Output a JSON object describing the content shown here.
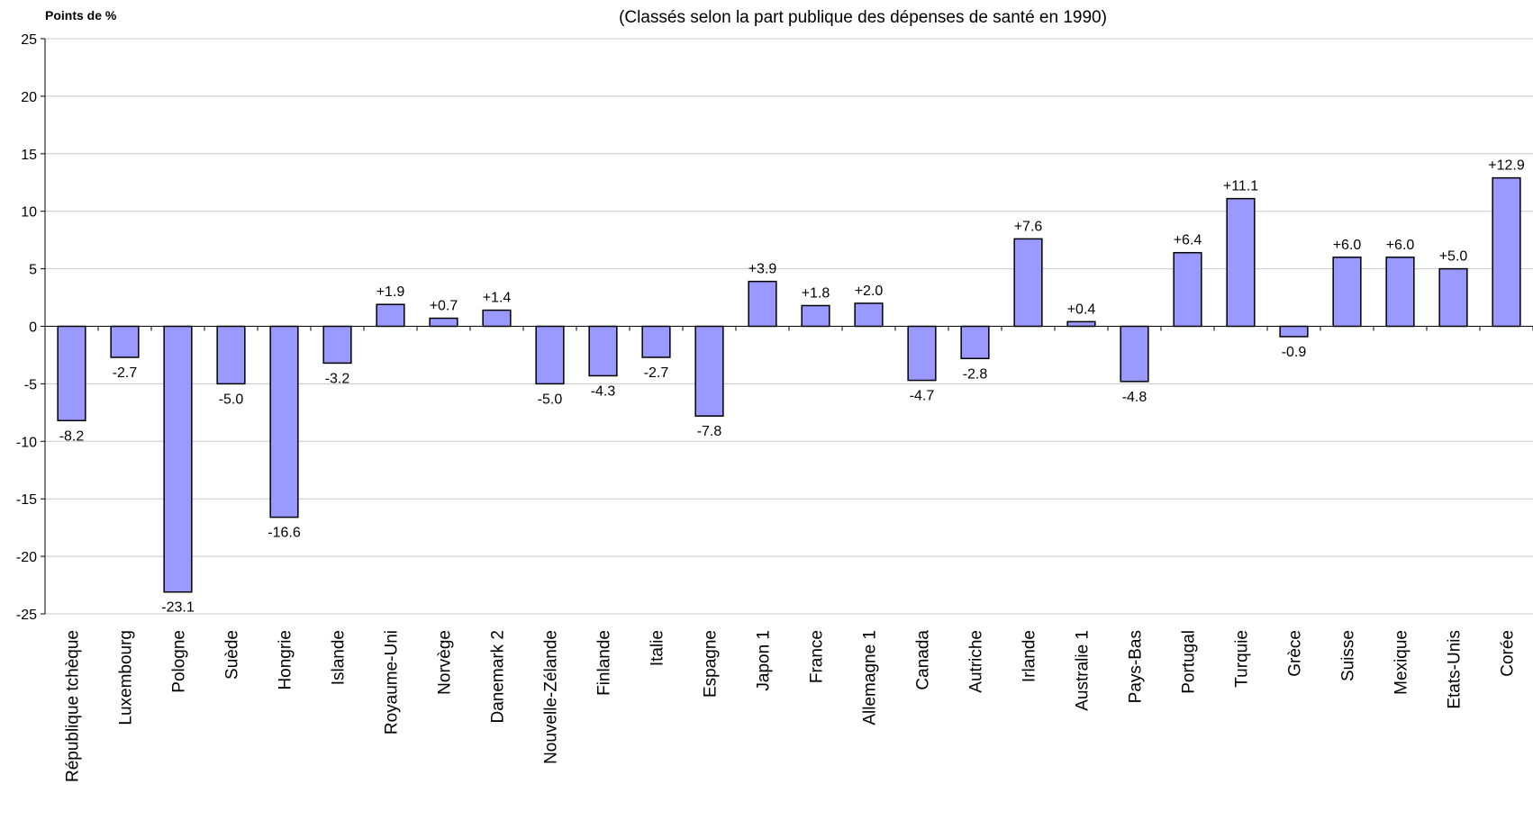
{
  "chart_data": {
    "type": "bar",
    "subtitle": "(Classés selon la part publique des dépenses de santé en 1990)",
    "ylabel": "Points de %",
    "ylim": [
      -25,
      25
    ],
    "yticks": [
      25,
      20,
      15,
      10,
      5,
      0,
      -5,
      -10,
      -15,
      -20,
      -25
    ],
    "grid": true,
    "bar_color": "#9999ff",
    "categories": [
      "République tchèque",
      "Luxembourg",
      "Pologne",
      "Suède",
      "Hongrie",
      "Islande",
      "Royaume-Uni",
      "Norvège",
      "Danemark 2",
      "Nouvelle-Zélande",
      "Finlande",
      "Italie",
      "Espagne",
      "Japon 1",
      "France",
      "Allemagne 1",
      "Canada",
      "Autriche",
      "Irlande",
      "Australie 1",
      "Pays-Bas",
      "Portugal",
      "Turquie",
      "Grèce",
      "Suisse",
      "Mexique",
      "Etats-Unis",
      "Corée"
    ],
    "values": [
      -8.2,
      -2.7,
      -23.1,
      -5.0,
      -16.6,
      -3.2,
      1.9,
      0.7,
      1.4,
      -5.0,
      -4.3,
      -2.7,
      -7.8,
      3.9,
      1.8,
      2.0,
      -4.7,
      -2.8,
      7.6,
      0.4,
      -4.8,
      6.4,
      11.1,
      -0.9,
      6.0,
      6.0,
      5.0,
      12.9
    ],
    "value_labels": [
      "-8.2",
      "-2.7",
      "-23.1",
      "-5.0",
      "-16.6",
      "-3.2",
      "+1.9",
      "+0.7",
      "+1.4",
      "-5.0",
      "-4.3",
      "-2.7",
      "-7.8",
      "+3.9",
      "+1.8",
      "+2.0",
      "-4.7",
      "-2.8",
      "+7.6",
      "+0.4",
      "-4.8",
      "+6.4",
      "+11.1",
      "-0.9",
      "+6.0",
      "+6.0",
      "+5.0",
      "+12.9"
    ]
  }
}
